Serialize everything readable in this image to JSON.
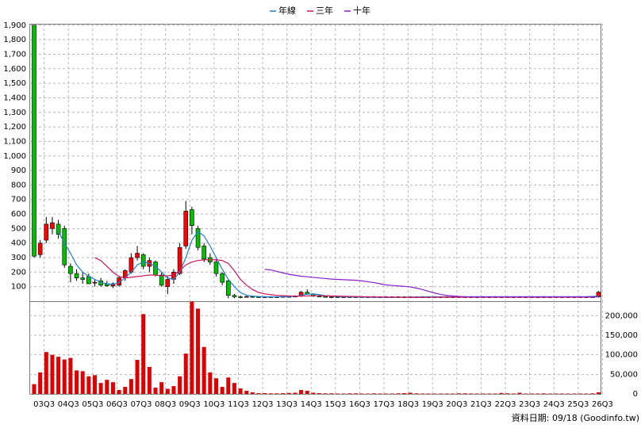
{
  "chart_data": {
    "type": "candlestick",
    "legend": "top",
    "note": "資料日期: 09/18 (Goodinfo.tw)",
    "up_color": "#ff0000",
    "down_color": "#00c000",
    "volume_color": "#e00000",
    "grid": true,
    "categories": [
      null,
      "03Q3",
      null,
      null,
      null,
      "04Q3",
      null,
      null,
      null,
      "05Q3",
      null,
      null,
      null,
      "06Q3",
      null,
      null,
      null,
      "07Q3",
      null,
      null,
      null,
      "08Q3",
      null,
      null,
      null,
      "09Q3",
      null,
      null,
      null,
      "10Q3",
      null,
      null,
      null,
      "11Q3",
      null,
      null,
      null,
      "12Q3",
      null,
      null,
      null,
      "13Q3",
      null,
      null,
      null,
      "14Q3",
      null,
      null,
      null,
      "15Q3",
      null,
      null,
      null,
      "16Q3",
      null,
      null,
      null,
      "17Q3",
      null,
      null,
      null,
      "18Q3",
      null,
      null,
      null,
      "19Q3",
      null,
      null,
      null,
      "20Q3",
      null,
      null,
      null,
      "21Q3",
      null,
      null,
      null,
      "22Q3",
      null,
      null,
      null,
      "23Q3",
      null,
      null,
      null,
      "24Q3",
      null,
      null,
      null,
      "25Q3",
      null,
      null,
      null,
      "26Q3"
    ],
    "ohlc": [
      [
        1900,
        1900,
        300,
        310
      ],
      [
        320,
        420,
        300,
        400
      ],
      [
        420,
        580,
        400,
        530
      ],
      [
        500,
        580,
        460,
        540
      ],
      [
        530,
        560,
        430,
        460
      ],
      [
        500,
        520,
        230,
        250
      ],
      [
        240,
        260,
        130,
        190
      ],
      [
        190,
        220,
        140,
        160
      ],
      [
        160,
        200,
        120,
        150
      ],
      [
        170,
        190,
        120,
        120
      ],
      [
        130,
        150,
        100,
        130
      ],
      [
        140,
        160,
        100,
        110
      ],
      [
        120,
        140,
        100,
        105
      ],
      [
        105,
        130,
        90,
        120
      ],
      [
        110,
        170,
        100,
        160
      ],
      [
        160,
        220,
        140,
        210
      ],
      [
        200,
        330,
        190,
        300
      ],
      [
        300,
        380,
        280,
        330
      ],
      [
        320,
        330,
        220,
        240
      ],
      [
        240,
        300,
        200,
        280
      ],
      [
        270,
        280,
        170,
        180
      ],
      [
        180,
        200,
        100,
        110
      ],
      [
        100,
        170,
        50,
        150
      ],
      [
        150,
        220,
        120,
        200
      ],
      [
        190,
        400,
        180,
        370
      ],
      [
        380,
        690,
        360,
        620
      ],
      [
        630,
        650,
        460,
        520
      ],
      [
        500,
        520,
        350,
        370
      ],
      [
        380,
        400,
        270,
        290
      ],
      [
        300,
        330,
        250,
        270
      ],
      [
        270,
        290,
        170,
        190
      ],
      [
        190,
        200,
        110,
        130
      ],
      [
        140,
        150,
        20,
        40
      ],
      [
        40,
        50,
        20,
        30
      ],
      [
        30,
        40,
        20,
        25
      ],
      [
        30,
        40,
        25,
        32
      ],
      [
        32,
        38,
        25,
        30
      ],
      [
        30,
        35,
        25,
        28
      ],
      [
        28,
        35,
        22,
        30
      ],
      [
        30,
        34,
        24,
        28
      ],
      [
        28,
        33,
        22,
        30
      ],
      [
        30,
        36,
        25,
        32
      ],
      [
        32,
        38,
        26,
        30
      ],
      [
        30,
        40,
        26,
        35
      ],
      [
        35,
        70,
        30,
        62
      ],
      [
        62,
        82,
        45,
        50
      ],
      [
        50,
        55,
        30,
        35
      ],
      [
        35,
        40,
        28,
        32
      ],
      [
        32,
        36,
        25,
        28
      ],
      [
        28,
        34,
        22,
        30
      ],
      [
        30,
        35,
        24,
        28
      ],
      [
        28,
        34,
        22,
        30
      ],
      [
        30,
        35,
        24,
        28
      ],
      [
        28,
        34,
        22,
        30
      ],
      [
        30,
        35,
        24,
        28
      ],
      [
        28,
        34,
        22,
        30
      ],
      [
        30,
        35,
        24,
        28
      ],
      [
        28,
        34,
        22,
        30
      ],
      [
        30,
        35,
        24,
        28
      ],
      [
        28,
        34,
        22,
        30
      ],
      [
        30,
        35,
        24,
        28
      ],
      [
        28,
        34,
        22,
        30
      ],
      [
        30,
        35,
        24,
        28
      ],
      [
        28,
        34,
        22,
        30
      ],
      [
        30,
        35,
        24,
        28
      ],
      [
        28,
        34,
        22,
        30
      ],
      [
        30,
        35,
        24,
        28
      ],
      [
        28,
        34,
        22,
        30
      ],
      [
        30,
        35,
        24,
        28
      ],
      [
        28,
        34,
        22,
        30
      ],
      [
        30,
        35,
        24,
        28
      ],
      [
        28,
        34,
        22,
        30
      ],
      [
        30,
        35,
        24,
        28
      ],
      [
        28,
        34,
        22,
        30
      ],
      [
        30,
        35,
        24,
        28
      ],
      [
        28,
        34,
        22,
        30
      ],
      [
        30,
        35,
        24,
        28
      ],
      [
        28,
        34,
        22,
        30
      ],
      [
        30,
        35,
        24,
        28
      ],
      [
        28,
        34,
        22,
        30
      ],
      [
        30,
        35,
        24,
        28
      ],
      [
        28,
        34,
        22,
        30
      ],
      [
        30,
        35,
        24,
        28
      ],
      [
        28,
        34,
        22,
        30
      ],
      [
        30,
        35,
        24,
        28
      ],
      [
        28,
        34,
        22,
        30
      ],
      [
        30,
        35,
        24,
        28
      ],
      [
        28,
        34,
        22,
        30
      ],
      [
        30,
        35,
        24,
        28
      ],
      [
        28,
        34,
        22,
        30
      ],
      [
        30,
        35,
        24,
        28
      ],
      [
        28,
        34,
        22,
        30
      ],
      [
        30,
        35,
        24,
        28
      ],
      [
        30,
        70,
        25,
        62
      ]
    ],
    "volume": [
      25000,
      55000,
      107000,
      100000,
      95000,
      88000,
      92000,
      60000,
      58000,
      45000,
      48000,
      28000,
      36000,
      30000,
      10000,
      18000,
      38000,
      87000,
      204000,
      69000,
      16000,
      30000,
      13000,
      20000,
      45000,
      103000,
      236000,
      218000,
      120000,
      55000,
      40000,
      18000,
      42000,
      28000,
      14000,
      8000,
      4000,
      2000,
      2000,
      1500,
      1500,
      2000,
      2500,
      3000,
      10000,
      8000,
      3000,
      2000,
      1500,
      1500,
      1000,
      1000,
      1500,
      1500,
      1000,
      1000,
      1500,
      1000,
      1000,
      1000,
      1500,
      2000,
      3000,
      1500,
      1000,
      1000,
      1000,
      1000,
      1000,
      1000,
      1500,
      1500,
      1000,
      1000,
      1000,
      1000,
      1000,
      2500,
      1500,
      1000,
      3000,
      1000,
      1000,
      1000,
      1500,
      1000,
      1000,
      1000,
      1000,
      1000,
      1000,
      1000,
      1500,
      4000
    ],
    "series": [
      {
        "name": "年線",
        "color": "#1e7fd0",
        "values": [
          null,
          null,
          null,
          null,
          480,
          400,
          330,
          250,
          200,
          170,
          150,
          130,
          120,
          115,
          130,
          160,
          200,
          250,
          270,
          260,
          240,
          200,
          160,
          150,
          200,
          300,
          420,
          480,
          450,
          380,
          300,
          220,
          150,
          100,
          60,
          40,
          35,
          32,
          30,
          30,
          30,
          31,
          32,
          33,
          40,
          48,
          50,
          45,
          38,
          34,
          32,
          30,
          30,
          29,
          28,
          28,
          27,
          27,
          26,
          26,
          27,
          28,
          28,
          29,
          30,
          30,
          30,
          30,
          30,
          30,
          30,
          30,
          30,
          30,
          30,
          30,
          30,
          30,
          30,
          30,
          30,
          30,
          30,
          30,
          30,
          30,
          30,
          30,
          30,
          30,
          30,
          31,
          33,
          36
        ]
      },
      {
        "name": "三年",
        "color": "#d4145a",
        "values": [
          null,
          null,
          null,
          null,
          null,
          null,
          null,
          null,
          null,
          null,
          300,
          280,
          240,
          200,
          170,
          160,
          165,
          170,
          175,
          180,
          180,
          175,
          175,
          180,
          210,
          250,
          270,
          280,
          285,
          285,
          285,
          280,
          260,
          210,
          150,
          110,
          80,
          60,
          50,
          45,
          40,
          38,
          36,
          35,
          35,
          36,
          38,
          38,
          37,
          36,
          35,
          34,
          33,
          32,
          31,
          30,
          30,
          29,
          28,
          28,
          27,
          27,
          26,
          26,
          26,
          27,
          27,
          28,
          28,
          28,
          28,
          28,
          28,
          28,
          28,
          28,
          28,
          28,
          28,
          28,
          28,
          28,
          28,
          28,
          28,
          28,
          28,
          28,
          28,
          28,
          28,
          29,
          29,
          30
        ]
      },
      {
        "name": "十年",
        "color": "#8b1ecf",
        "values": [
          null,
          null,
          null,
          null,
          null,
          null,
          null,
          null,
          null,
          null,
          null,
          null,
          null,
          null,
          null,
          null,
          null,
          null,
          null,
          null,
          null,
          null,
          null,
          null,
          null,
          null,
          null,
          null,
          null,
          null,
          null,
          null,
          null,
          null,
          null,
          null,
          null,
          null,
          220,
          215,
          205,
          195,
          185,
          178,
          172,
          168,
          164,
          160,
          156,
          152,
          150,
          148,
          146,
          144,
          140,
          134,
          128,
          120,
          112,
          108,
          105,
          102,
          98,
          90,
          80,
          68,
          56,
          46,
          40,
          36,
          33,
          31,
          30,
          30,
          30,
          30,
          30,
          30,
          30,
          30,
          30,
          30,
          30,
          30,
          30,
          30,
          30,
          30,
          30,
          30,
          30,
          30,
          30,
          30
        ]
      }
    ],
    "ylim": [
      0,
      1910
    ],
    "yticks": [
      100,
      200,
      300,
      400,
      500,
      600,
      700,
      800,
      900,
      {
        "value": 1000,
        "label": "1,000"
      },
      {
        "value": 1100,
        "label": "1,100"
      },
      {
        "value": 1200,
        "label": "1,200"
      },
      {
        "value": 1300,
        "label": "1,300"
      },
      {
        "value": 1400,
        "label": "1,400"
      },
      {
        "value": 1500,
        "label": "1,500"
      },
      {
        "value": 1600,
        "label": "1,600"
      },
      {
        "value": 1700,
        "label": "1,700"
      },
      {
        "value": 1800,
        "label": "1,800"
      },
      {
        "value": 1900,
        "label": "1,900"
      }
    ],
    "y2lim": [
      0,
      237000
    ],
    "y2ticks": [
      0,
      {
        "value": 50000,
        "label": "50,000"
      },
      {
        "value": 100000,
        "label": "100,000"
      },
      {
        "value": 150000,
        "label": "150,000"
      },
      {
        "value": 200000,
        "label": "200,000"
      }
    ]
  }
}
